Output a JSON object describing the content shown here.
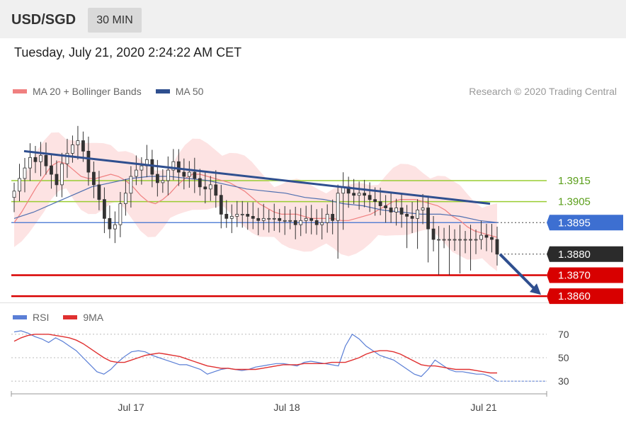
{
  "header": {
    "symbol": "USD/SGD",
    "timeframe": "30 MIN",
    "datetime": "Tuesday, July 21, 2020 2:24:22 AM CET"
  },
  "legend": {
    "ma20_label": "MA 20 + Bollinger Bands",
    "ma50_label": "MA 50",
    "credit": "Research © 2020 Trading Central"
  },
  "colors": {
    "candle": "#333333",
    "bollinger_fill": "#fde0e0",
    "ma20": "#f08080",
    "ma50": "#4f6fb0",
    "trendline": "#2f4f8f",
    "support": "#d80000",
    "resistance_green": "#9acd32",
    "pivot": "#3d6fd1",
    "current": "#2b2b2b",
    "rsi": "#5b7fd6",
    "rsi_ma": "#e03030"
  },
  "chart_data": [
    {
      "type": "candlestick",
      "title": "USD/SGD",
      "x_ticks": [
        "Jul 17",
        "Jul 18",
        "Jul 21"
      ],
      "price_levels": [
        {
          "label": "1.3915",
          "value": 1.3915,
          "role": "resistance",
          "color": "green"
        },
        {
          "label": "1.3905",
          "value": 1.3905,
          "role": "resistance",
          "color": "green"
        },
        {
          "label": "1.3895",
          "value": 1.3895,
          "role": "pivot",
          "color": "blue"
        },
        {
          "label": "1.3880",
          "value": 1.388,
          "role": "last",
          "color": "black"
        },
        {
          "label": "1.3870",
          "value": 1.387,
          "role": "support",
          "color": "red"
        },
        {
          "label": "1.3860",
          "value": 1.386,
          "role": "support",
          "color": "red"
        }
      ],
      "ylim": [
        1.3856,
        1.3947
      ],
      "closes": [
        1.391,
        1.3916,
        1.3921,
        1.3926,
        1.3924,
        1.3927,
        1.3922,
        1.3918,
        1.3913,
        1.3923,
        1.3928,
        1.3932,
        1.3934,
        1.3929,
        1.3919,
        1.3913,
        1.3906,
        1.3897,
        1.3892,
        1.3894,
        1.3904,
        1.3909,
        1.3917,
        1.392,
        1.3922,
        1.3925,
        1.3918,
        1.3914,
        1.3915,
        1.392,
        1.3924,
        1.3919,
        1.3917,
        1.3919,
        1.3916,
        1.3912,
        1.3911,
        1.3913,
        1.3908,
        1.3899,
        1.3897,
        1.3898,
        1.3899,
        1.3899,
        1.3898,
        1.3897,
        1.3896,
        1.3897,
        1.3897,
        1.3897,
        1.3896,
        1.3896,
        1.3896,
        1.3894,
        1.3896,
        1.3897,
        1.3896,
        1.3894,
        1.3895,
        1.3899,
        1.3896,
        1.3909,
        1.3912,
        1.3909,
        1.3908,
        1.3909,
        1.3908,
        1.3906,
        1.3905,
        1.3903,
        1.3902,
        1.39,
        1.3902,
        1.3899,
        1.3898,
        1.3897,
        1.3901,
        1.3902,
        1.3892,
        1.3887,
        1.3887,
        1.3887,
        1.3887,
        1.3887,
        1.3887,
        1.3887,
        1.3887,
        1.3887,
        1.3889,
        1.3888,
        1.3887,
        1.388
      ],
      "ma20": [
        1.3895,
        1.39,
        1.3906,
        1.3912,
        1.3917,
        1.3922,
        1.3924,
        1.3923,
        1.392,
        1.3917,
        1.3916,
        1.3916,
        1.3917,
        1.3918,
        1.3917,
        1.3915,
        1.3912,
        1.3908,
        1.3905,
        1.3904,
        1.3906,
        1.3909,
        1.3913,
        1.3916,
        1.3918,
        1.3918,
        1.3917,
        1.3916,
        1.3915,
        1.3914,
        1.3912,
        1.391,
        1.3907,
        1.3904,
        1.3902,
        1.39,
        1.3899,
        1.3899,
        1.3899,
        1.3898,
        1.3897,
        1.3897,
        1.3897,
        1.3897,
        1.3896,
        1.3896,
        1.3897,
        1.3898,
        1.3899,
        1.3901,
        1.3903,
        1.3905,
        1.3906,
        1.3906,
        1.3906,
        1.3905,
        1.3904,
        1.3903,
        1.3901,
        1.3898,
        1.3896,
        1.3893,
        1.3891,
        1.389,
        1.3889,
        1.3888
      ],
      "ma50": [
        1.3897,
        1.39,
        1.3904,
        1.3908,
        1.3912,
        1.3914,
        1.3916,
        1.3917,
        1.3917,
        1.3916,
        1.3915,
        1.3913,
        1.3911,
        1.391,
        1.3909,
        1.3907,
        1.3906,
        1.3904,
        1.3903,
        1.3901,
        1.39,
        1.3899,
        1.3899,
        1.3898,
        1.3896,
        1.3895
      ],
      "trendline": {
        "start": 1.3929,
        "end": 1.3904
      },
      "forecast_arrow": {
        "from": 1.388,
        "to": 1.386
      }
    },
    {
      "type": "line",
      "title": "RSI",
      "series": [
        {
          "name": "RSI",
          "values": [
            72,
            73,
            71,
            68,
            66,
            63,
            67,
            64,
            60,
            56,
            50,
            44,
            38,
            36,
            40,
            46,
            51,
            55,
            56,
            55,
            52,
            50,
            48,
            46,
            44,
            44,
            42,
            40,
            36,
            38,
            40,
            41,
            40,
            39,
            40,
            42,
            43,
            44,
            45,
            45,
            44,
            43,
            46,
            47,
            46,
            45,
            44,
            43,
            60,
            70,
            66,
            60,
            56,
            52,
            50,
            48,
            44,
            40,
            36,
            34,
            40,
            48,
            44,
            40,
            38,
            38,
            37,
            36,
            36,
            34,
            30
          ]
        },
        {
          "name": "9MA",
          "values": [
            64,
            67,
            69,
            70,
            70,
            70,
            69,
            68,
            67,
            65,
            62,
            58,
            54,
            50,
            47,
            46,
            46,
            48,
            50,
            52,
            53,
            54,
            53,
            52,
            51,
            49,
            47,
            45,
            43,
            42,
            41,
            41,
            40,
            40,
            40,
            40,
            41,
            42,
            43,
            44,
            44,
            44,
            45,
            45,
            45,
            45,
            46,
            46,
            46,
            48,
            50,
            53,
            55,
            56,
            56,
            55,
            53,
            50,
            47,
            44,
            43,
            43,
            42,
            41,
            40,
            40,
            40,
            39,
            38,
            37,
            37
          ]
        }
      ],
      "y_ticks": [
        "70",
        "50",
        "30"
      ],
      "ylim": [
        24,
        76
      ]
    }
  ]
}
